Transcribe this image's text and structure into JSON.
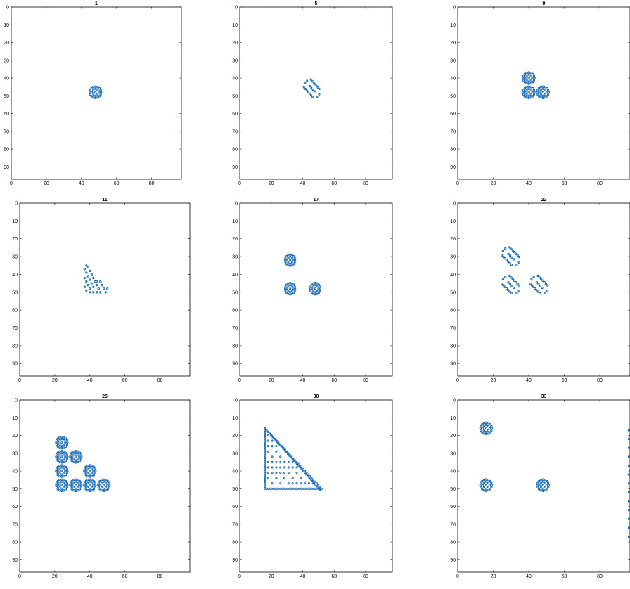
{
  "figure": {
    "dot_color": "#1f6fb8",
    "axes_color": "#000000"
  },
  "chart_data": [
    {
      "type": "scatter",
      "title": "1",
      "xlim": [
        0,
        97
      ],
      "ylim": [
        0,
        97
      ],
      "y_reversed": true,
      "x_ticks": [
        0,
        20,
        40,
        60,
        80
      ],
      "y_ticks": [
        0,
        10,
        20,
        30,
        40,
        50,
        60,
        70,
        80,
        90
      ],
      "patterns": [
        {
          "shape": "ring",
          "cx": 48,
          "cy": 48
        }
      ]
    },
    {
      "type": "scatter",
      "title": "5",
      "xlim": [
        0,
        97
      ],
      "ylim": [
        0,
        97
      ],
      "y_reversed": true,
      "x_ticks": [
        0,
        20,
        40,
        60,
        80
      ],
      "y_ticks": [
        0,
        10,
        20,
        30,
        40,
        50,
        60,
        70,
        80,
        90
      ],
      "patterns": [
        {
          "shape": "capsule",
          "cx": 46,
          "cy": 46
        }
      ]
    },
    {
      "type": "scatter",
      "title": "9",
      "xlim": [
        0,
        97
      ],
      "ylim": [
        0,
        97
      ],
      "y_reversed": true,
      "x_ticks": [
        0,
        20,
        40,
        60,
        80
      ],
      "y_ticks": [
        0,
        10,
        20,
        30,
        40,
        50,
        60,
        70,
        80,
        90
      ],
      "patterns": [
        {
          "shape": "ring",
          "cx": 40,
          "cy": 40
        },
        {
          "shape": "ring",
          "cx": 40,
          "cy": 48
        },
        {
          "shape": "ring",
          "cx": 48,
          "cy": 48
        }
      ]
    },
    {
      "type": "scatter",
      "title": "11",
      "xlim": [
        0,
        97
      ],
      "ylim": [
        0,
        97
      ],
      "y_reversed": true,
      "x_ticks": [
        0,
        20,
        40,
        60,
        80
      ],
      "y_ticks": [
        0,
        10,
        20,
        30,
        40,
        50,
        60,
        70,
        80,
        90
      ],
      "patterns": [
        {
          "shape": "cluster",
          "cx": 42,
          "cy": 43
        }
      ]
    },
    {
      "type": "scatter",
      "title": "17",
      "xlim": [
        0,
        97
      ],
      "ylim": [
        0,
        97
      ],
      "y_reversed": true,
      "x_ticks": [
        0,
        20,
        40,
        60,
        80
      ],
      "y_ticks": [
        0,
        10,
        20,
        30,
        40,
        50,
        60,
        70,
        80,
        90
      ],
      "patterns": [
        {
          "shape": "ring",
          "cx": 32,
          "cy": 32
        },
        {
          "shape": "ring",
          "cx": 32,
          "cy": 48
        },
        {
          "shape": "ring",
          "cx": 48,
          "cy": 48
        }
      ]
    },
    {
      "type": "scatter",
      "title": "22",
      "xlim": [
        0,
        97
      ],
      "ylim": [
        0,
        97
      ],
      "y_reversed": true,
      "x_ticks": [
        0,
        20,
        40,
        60,
        80
      ],
      "y_ticks": [
        0,
        10,
        20,
        30,
        40,
        50,
        60,
        70,
        80,
        90
      ],
      "patterns": [
        {
          "shape": "capsule",
          "cx": 30,
          "cy": 30
        },
        {
          "shape": "capsule",
          "cx": 30,
          "cy": 46
        },
        {
          "shape": "capsule",
          "cx": 46,
          "cy": 46
        }
      ]
    },
    {
      "type": "scatter",
      "title": "25",
      "xlim": [
        0,
        97
      ],
      "ylim": [
        0,
        97
      ],
      "y_reversed": true,
      "x_ticks": [
        0,
        20,
        40,
        60,
        80
      ],
      "y_ticks": [
        0,
        10,
        20,
        30,
        40,
        50,
        60,
        70,
        80,
        90
      ],
      "patterns": [
        {
          "shape": "ring",
          "cx": 24,
          "cy": 24
        },
        {
          "shape": "ring",
          "cx": 24,
          "cy": 32
        },
        {
          "shape": "ring",
          "cx": 32,
          "cy": 32
        },
        {
          "shape": "ring",
          "cx": 24,
          "cy": 40
        },
        {
          "shape": "ring",
          "cx": 40,
          "cy": 40
        },
        {
          "shape": "ring",
          "cx": 24,
          "cy": 48
        },
        {
          "shape": "ring",
          "cx": 32,
          "cy": 48
        },
        {
          "shape": "ring",
          "cx": 40,
          "cy": 48
        },
        {
          "shape": "ring",
          "cx": 48,
          "cy": 48
        }
      ]
    },
    {
      "type": "scatter",
      "title": "30",
      "xlim": [
        0,
        97
      ],
      "ylim": [
        0,
        97
      ],
      "y_reversed": true,
      "x_ticks": [
        0,
        20,
        40,
        60,
        80
      ],
      "y_ticks": [
        0,
        10,
        20,
        30,
        40,
        50,
        60,
        70,
        80,
        90
      ],
      "patterns": [
        {
          "shape": "triangle",
          "x0": 16,
          "x1": 52,
          "y0": 16,
          "y1": 50
        }
      ]
    },
    {
      "type": "scatter",
      "title": "33",
      "xlim": [
        0,
        97
      ],
      "ylim": [
        0,
        97
      ],
      "y_reversed": true,
      "x_ticks": [
        0,
        20,
        40,
        60,
        80
      ],
      "y_ticks": [
        0,
        10,
        20,
        30,
        40,
        50,
        60,
        70,
        80,
        90
      ],
      "patterns": [
        {
          "shape": "ring",
          "cx": 16,
          "cy": 16
        },
        {
          "shape": "ring",
          "cx": 16,
          "cy": 48
        },
        {
          "shape": "ring",
          "cx": 48,
          "cy": 48
        },
        {
          "shape": "edge",
          "x": 97,
          "y0": 17,
          "y1": 80
        }
      ]
    }
  ]
}
